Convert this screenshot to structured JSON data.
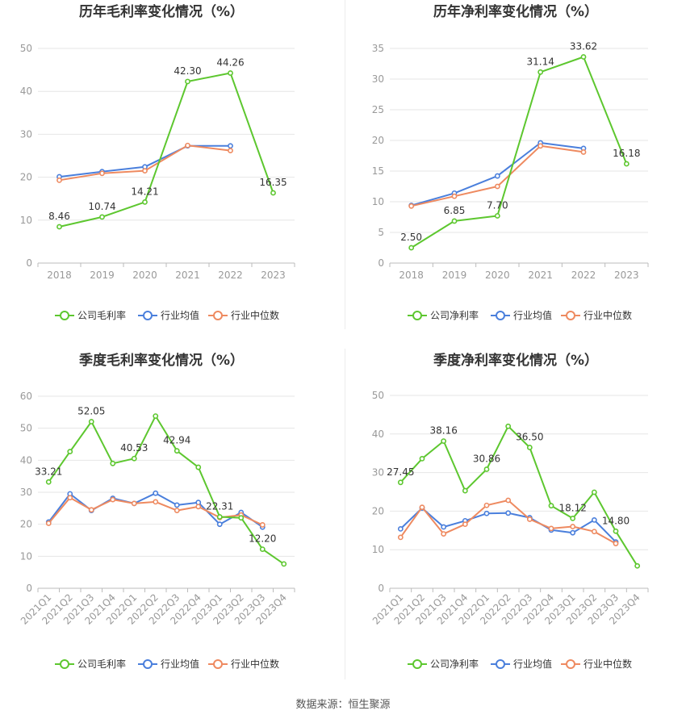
{
  "source": "数据来源：恒生聚源",
  "legend_common": [
    "行业均值",
    "行业中位数"
  ],
  "colors": {
    "company": "#5dc72f",
    "mean": "#4a7fdc",
    "median": "#ee8a60",
    "grid": "#e6e6e6",
    "axis": "#bbbbbb"
  },
  "chart_data": [
    {
      "type": "line",
      "title": "历年毛利率变化情况（%）",
      "categories": [
        "2018",
        "2019",
        "2020",
        "2021",
        "2022",
        "2023"
      ],
      "ylim": [
        0,
        50
      ],
      "yticks": [
        0,
        10,
        20,
        30,
        40,
        50
      ],
      "series": [
        {
          "name": "公司毛利率",
          "values": [
            8.46,
            10.74,
            14.21,
            42.3,
            44.26,
            16.35
          ],
          "labels": [
            "8.46",
            "10.74",
            "14.21",
            "42.30",
            "44.26",
            "16.35"
          ]
        },
        {
          "name": "行业均值",
          "values": [
            20.1,
            21.3,
            22.4,
            27.3,
            27.3,
            null
          ]
        },
        {
          "name": "行业中位数",
          "values": [
            19.3,
            20.9,
            21.5,
            27.4,
            26.2,
            null
          ]
        }
      ]
    },
    {
      "type": "line",
      "title": "历年净利率变化情况（%）",
      "categories": [
        "2018",
        "2019",
        "2020",
        "2021",
        "2022",
        "2023"
      ],
      "ylim": [
        0,
        35
      ],
      "yticks": [
        0,
        5,
        10,
        15,
        20,
        25,
        30,
        35
      ],
      "series": [
        {
          "name": "公司净利率",
          "values": [
            2.5,
            6.85,
            7.7,
            31.14,
            33.62,
            16.18
          ],
          "labels": [
            "2.50",
            "6.85",
            "7.70",
            "31.14",
            "33.62",
            "16.18"
          ]
        },
        {
          "name": "行业均值",
          "values": [
            9.4,
            11.4,
            14.2,
            19.6,
            18.7,
            null
          ]
        },
        {
          "name": "行业中位数",
          "values": [
            9.3,
            10.9,
            12.5,
            19.1,
            18.1,
            null
          ]
        }
      ]
    },
    {
      "type": "line",
      "title": "季度毛利率变化情况（%）",
      "categories": [
        "2021Q1",
        "2021Q2",
        "2021Q3",
        "2021Q4",
        "2022Q1",
        "2022Q2",
        "2022Q3",
        "2022Q4",
        "2023Q1",
        "2023Q2",
        "2023Q3",
        "2023Q4"
      ],
      "ylim": [
        0,
        60
      ],
      "yticks": [
        0,
        10,
        20,
        30,
        40,
        50,
        60
      ],
      "series": [
        {
          "name": "公司毛利率",
          "values": [
            33.21,
            42.7,
            52.05,
            39.0,
            40.53,
            53.8,
            42.94,
            37.8,
            22.31,
            22.0,
            12.2,
            7.6
          ],
          "labels": [
            "33.21",
            "",
            "52.05",
            "",
            "40.53",
            "",
            "42.94",
            "",
            "22.31",
            "",
            "12.20",
            ""
          ]
        },
        {
          "name": "行业均值",
          "values": [
            20.7,
            29.5,
            24.3,
            28.1,
            26.5,
            29.7,
            26.0,
            26.8,
            20.0,
            23.7,
            19.1,
            null
          ]
        },
        {
          "name": "行业中位数",
          "values": [
            20.3,
            28.3,
            24.5,
            27.7,
            26.5,
            27.0,
            24.3,
            25.5,
            22.1,
            22.9,
            19.8,
            null
          ]
        }
      ]
    },
    {
      "type": "line",
      "title": "季度净利率变化情况（%）",
      "categories": [
        "2021Q1",
        "2021Q2",
        "2021Q3",
        "2021Q4",
        "2022Q1",
        "2022Q2",
        "2022Q3",
        "2022Q4",
        "2023Q1",
        "2023Q2",
        "2023Q3",
        "2023Q4"
      ],
      "ylim": [
        0,
        50
      ],
      "yticks": [
        0,
        10,
        20,
        30,
        40,
        50
      ],
      "series": [
        {
          "name": "公司净利率",
          "values": [
            27.45,
            33.6,
            38.16,
            25.3,
            30.86,
            42.0,
            36.5,
            21.4,
            18.12,
            24.9,
            14.8,
            5.8
          ],
          "labels": [
            "27.45",
            "",
            "38.16",
            "",
            "30.86",
            "",
            "36.50",
            "",
            "18.12",
            "",
            "14.80",
            ""
          ]
        },
        {
          "name": "行业均值",
          "values": [
            15.4,
            20.8,
            15.9,
            17.5,
            19.4,
            19.5,
            18.3,
            15.1,
            14.4,
            17.7,
            12.0,
            null
          ]
        },
        {
          "name": "行业中位数",
          "values": [
            13.2,
            21.0,
            14.1,
            16.6,
            21.5,
            22.8,
            17.9,
            15.5,
            16.0,
            14.7,
            11.6,
            null
          ]
        }
      ]
    }
  ]
}
